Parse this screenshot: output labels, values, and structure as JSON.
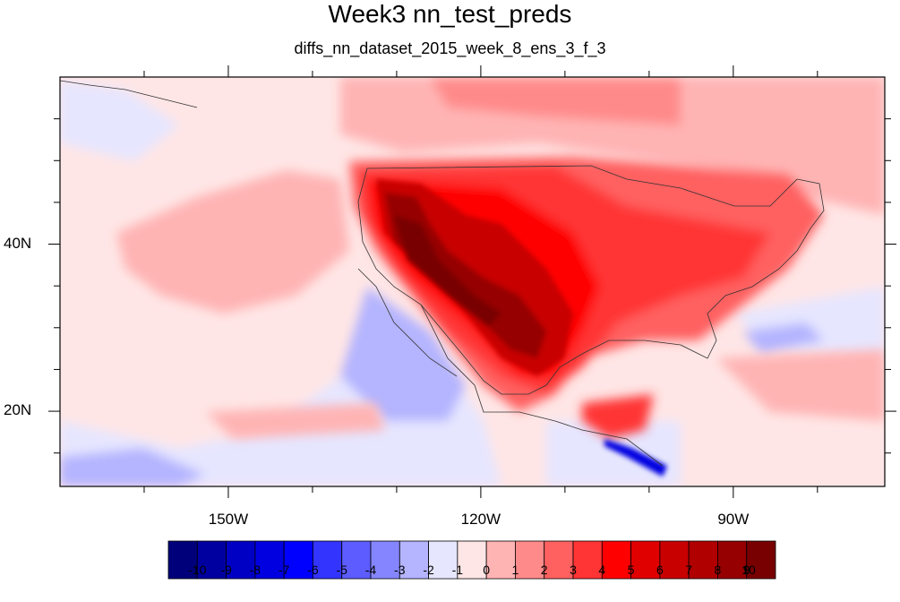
{
  "title": "Week3 nn_test_preds",
  "subtitle": "diffs_nn_dataset_2015_week_8_ens_3_f_3",
  "map": {
    "lon_range": [
      -170,
      -72
    ],
    "lat_range": [
      11,
      60
    ],
    "lon_ticks": [
      {
        "value": -150,
        "label": "150W"
      },
      {
        "value": -120,
        "label": "120W"
      },
      {
        "value": -90,
        "label": "90W"
      }
    ],
    "lat_ticks": [
      {
        "value": 40,
        "label": "40N"
      },
      {
        "value": 20,
        "label": "20N"
      }
    ]
  },
  "colorbar": {
    "labels": [
      "-10",
      "-9",
      "-8",
      "-7",
      "-6",
      "-5",
      "-4",
      "-3",
      "-2",
      "-1",
      "0",
      "1",
      "2",
      "3",
      "4",
      "5",
      "6",
      "7",
      "8",
      "9",
      "10"
    ],
    "colors": [
      "#00007a",
      "#0000a0",
      "#0000c4",
      "#0000e0",
      "#0000ff",
      "#3434ff",
      "#5c5cff",
      "#8585ff",
      "#b4b4ff",
      "#e6e6ff",
      "#ffe6e6",
      "#ffb4b4",
      "#ff8a8a",
      "#ff6060",
      "#ff3434",
      "#ff0000",
      "#e00000",
      "#c80000",
      "#b00000",
      "#960000",
      "#780000"
    ]
  }
}
